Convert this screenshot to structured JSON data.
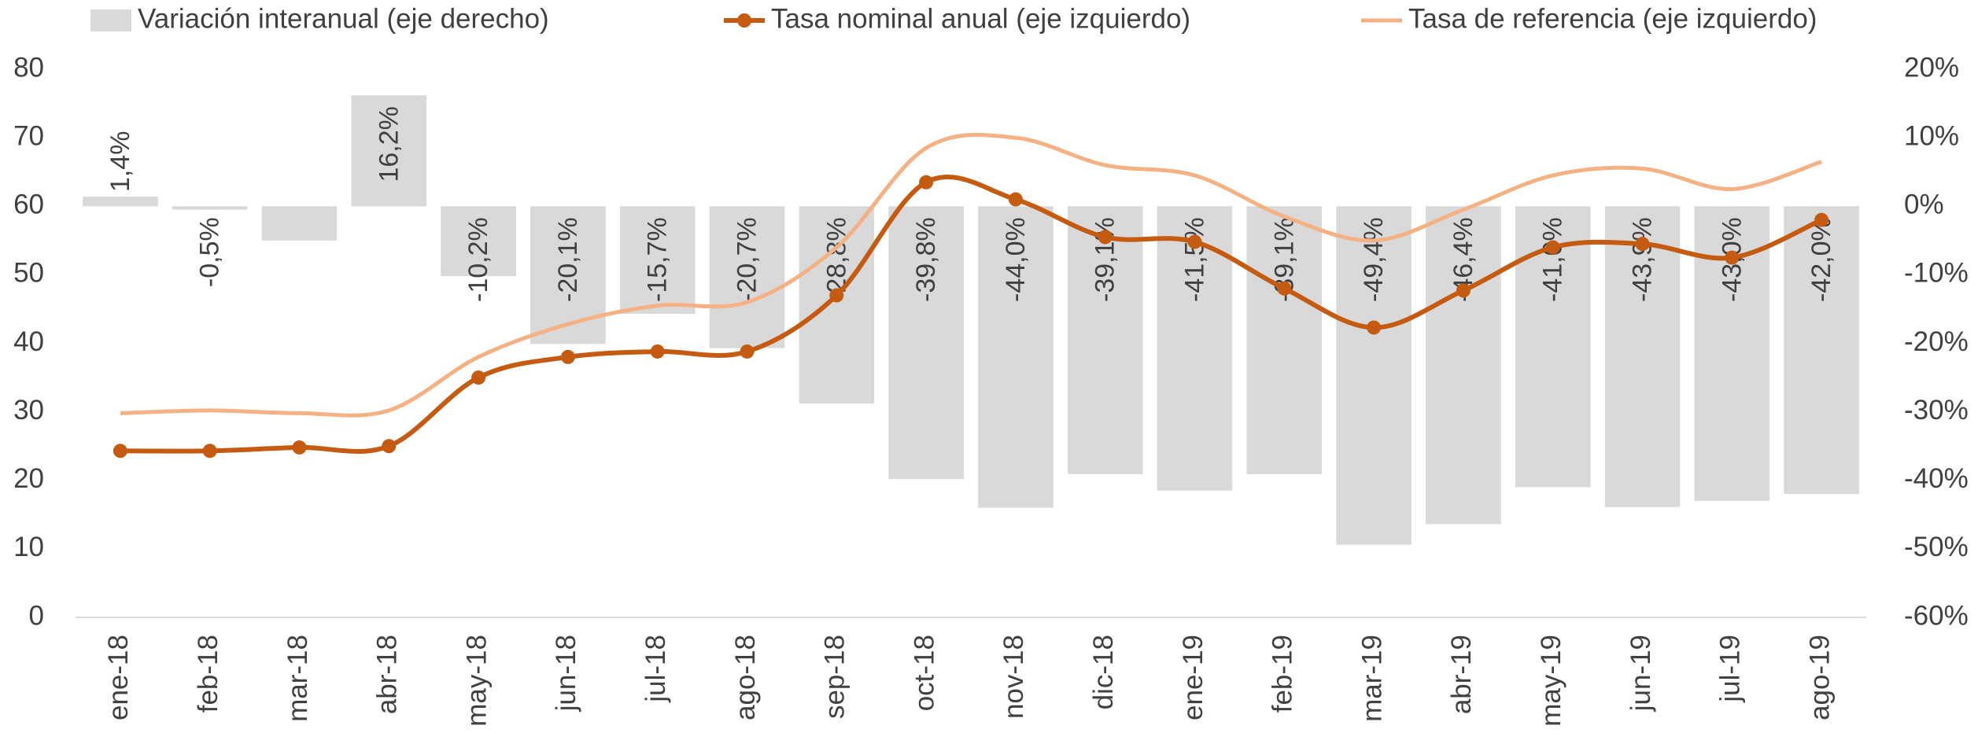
{
  "chart_data": {
    "type": "bar_line",
    "categories": [
      "ene-18",
      "feb-18",
      "mar-18",
      "abr-18",
      "may-18",
      "jun-18",
      "jul-18",
      "ago-18",
      "sep-18",
      "oct-18",
      "nov-18",
      "dic-18",
      "ene-19",
      "feb-19",
      "mar-19",
      "abr-19",
      "may-19",
      "jun-19",
      "jul-19",
      "ago-19"
    ],
    "series": [
      {
        "name": "Variación interanual (eje derecho)",
        "type": "bar",
        "axis": "y2",
        "color": "#d9d9d9",
        "values": [
          1.4,
          -0.5,
          -5.0,
          16.2,
          -10.2,
          -20.1,
          -15.7,
          -20.7,
          -28.8,
          -39.8,
          -44.0,
          -39.1,
          -41.5,
          -39.1,
          -49.4,
          -46.4,
          -41.0,
          -43.9,
          -43.0,
          -42.0
        ],
        "value_labels": [
          "1,4%",
          "-0,5%",
          null,
          "16,2%",
          "-10,2%",
          "-20,1%",
          "-15,7%",
          "-20,7%",
          "-28,8%",
          "-39,8%",
          "-44,0%",
          "-39,1%",
          "-41,5%",
          "-39,1%",
          "-49,4%",
          "-46,4%",
          "-41,0%",
          "-43,9%",
          "-43,0%",
          "-42,0%"
        ]
      },
      {
        "name": "Tasa nominal anual (eje izquierdo)",
        "type": "line",
        "markers": true,
        "color": "#c55a11",
        "values": [
          24.3,
          24.3,
          24.8,
          25.0,
          35.0,
          38.0,
          38.8,
          38.8,
          47.0,
          63.5,
          61.0,
          55.5,
          54.8,
          48.0,
          42.3,
          47.7,
          54.0,
          54.5,
          52.5,
          58.0
        ]
      },
      {
        "name": "Tasa de referencia (eje izquierdo)",
        "type": "line",
        "markers": false,
        "color": "#f4b183",
        "values": [
          29.8,
          30.2,
          29.8,
          30.2,
          38.0,
          42.8,
          45.5,
          46.0,
          54.0,
          68.5,
          70.0,
          66.0,
          64.5,
          58.5,
          55.0,
          59.5,
          64.5,
          65.5,
          62.5,
          66.5
        ]
      }
    ],
    "ylim": [
      0,
      80
    ],
    "yticks": [
      0,
      10,
      20,
      30,
      40,
      50,
      60,
      70,
      80
    ],
    "y2lim": [
      -60,
      20
    ],
    "y2ticks": [
      {
        "value": -60,
        "label": "-60%"
      },
      {
        "value": -50,
        "label": "-50%"
      },
      {
        "value": -40,
        "label": "-40%"
      },
      {
        "value": -30,
        "label": "-30%"
      },
      {
        "value": -20,
        "label": "-20%"
      },
      {
        "value": -10,
        "label": "-10%"
      },
      {
        "value": 0,
        "label": "0%"
      },
      {
        "value": 10,
        "label": "10%"
      },
      {
        "value": 20,
        "label": "20%"
      }
    ],
    "legend": "top",
    "grid": false
  }
}
